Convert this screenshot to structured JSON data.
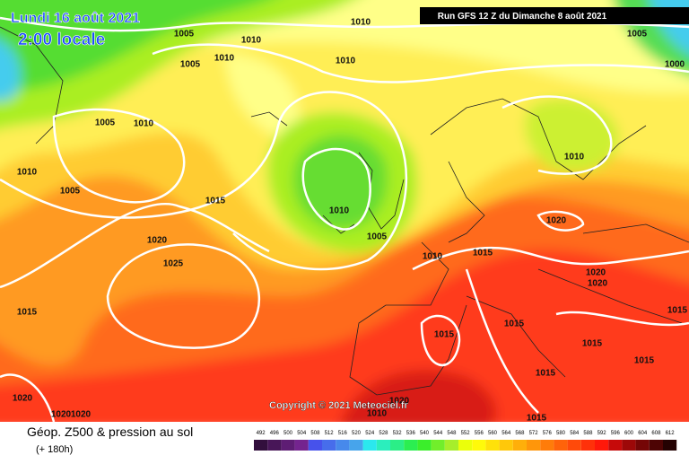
{
  "header": {
    "date": "Lundi 16 août 2021",
    "time": "2:00 locale",
    "run": "Run GFS 12 Z du Dimanche 8 août 2021"
  },
  "copyright": "Copyright © 2021 Meteociel.fr",
  "footer": {
    "title": "Géop. Z500 & pression au sol",
    "lead": "(+ 180h)"
  },
  "scale": {
    "labels": [
      492,
      496,
      500,
      504,
      508,
      512,
      516,
      520,
      524,
      528,
      532,
      536,
      540,
      544,
      548,
      552,
      556,
      560,
      564,
      568,
      572,
      576,
      580,
      584,
      588,
      592,
      596,
      600,
      604,
      608,
      612
    ]
  },
  "isobars": [
    1005,
    1010,
    1010,
    1005,
    1000,
    1005,
    1010,
    1010,
    1005,
    1010,
    1010,
    1005,
    1015,
    1010,
    1020,
    1010,
    1005,
    1020,
    1015,
    1010,
    1025,
    1020,
    1020,
    1015,
    1015,
    1015,
    1015,
    1015,
    1015,
    1015,
    1020,
    1020,
    1020,
    1010,
    1020,
    1015
  ]
}
